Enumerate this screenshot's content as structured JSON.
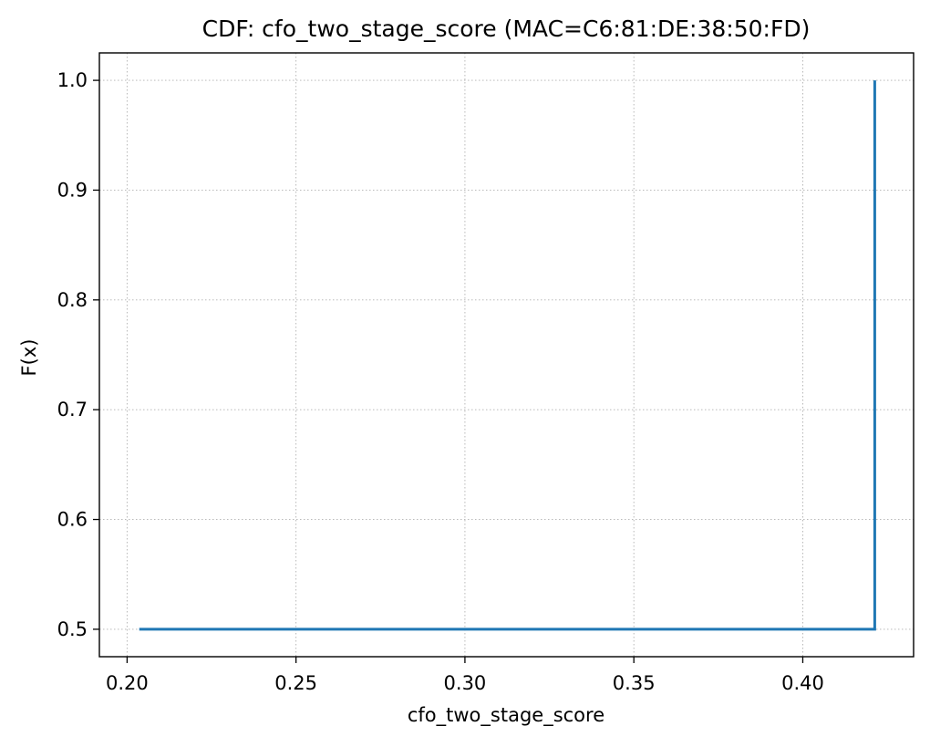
{
  "chart_data": {
    "type": "line",
    "title": "CDF: cfo_two_stage_score (MAC=C6:81:DE:38:50:FD)",
    "xlabel": "cfo_two_stage_score",
    "ylabel": "F(x)",
    "xlim": [
      0.1918,
      0.4328
    ],
    "ylim": [
      0.475,
      1.025
    ],
    "xticks": [
      0.2,
      0.25,
      0.3,
      0.35,
      0.4
    ],
    "xtick_labels": [
      "0.20",
      "0.25",
      "0.30",
      "0.35",
      "0.40"
    ],
    "yticks": [
      0.5,
      0.6,
      0.7,
      0.8,
      0.9,
      1.0
    ],
    "ytick_labels": [
      "0.5",
      "0.6",
      "0.7",
      "0.8",
      "0.9",
      "1.0"
    ],
    "grid": true,
    "grid_style": "dotted",
    "series": [
      {
        "color": "#1f77b4",
        "step": "post",
        "x": [
          0.2036,
          0.4213,
          0.4213
        ],
        "y": [
          0.5,
          0.5,
          1.0
        ]
      }
    ]
  }
}
